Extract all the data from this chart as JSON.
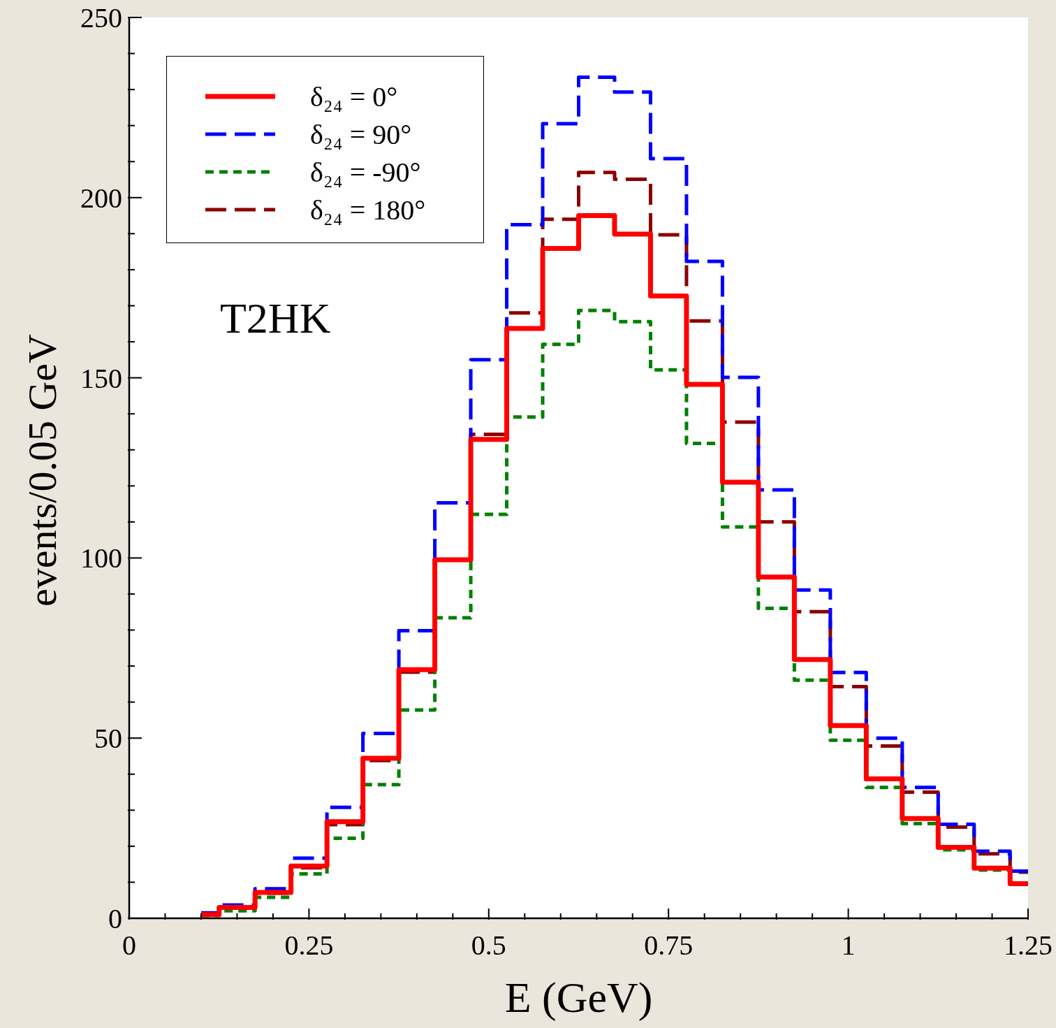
{
  "chart_data": {
    "type": "histogram",
    "xlabel": "E (GeV)",
    "ylabel": "events/0.05 GeV",
    "annotations": [
      "T2HK"
    ],
    "legend": "top left",
    "grid": false,
    "bins": [
      0.1,
      0.125,
      0.175,
      0.225,
      0.275,
      0.325,
      0.375,
      0.425,
      0.475,
      0.525,
      0.575,
      0.625,
      0.675,
      0.725,
      0.775,
      0.825,
      0.875,
      0.925,
      0.975,
      1.025,
      1.075,
      1.125,
      1.175,
      1.225,
      1.25
    ],
    "xlim": [
      0,
      1.25
    ],
    "ylim": [
      0,
      250
    ],
    "xticks": [
      0,
      {
        "value": 0.05,
        "label": null
      },
      {
        "value": 0.1,
        "label": null
      },
      {
        "value": 0.15,
        "label": null
      },
      {
        "value": 0.2,
        "label": null
      },
      0.25,
      {
        "value": 0.3,
        "label": null
      },
      {
        "value": 0.35,
        "label": null
      },
      {
        "value": 0.4,
        "label": null
      },
      {
        "value": 0.45,
        "label": null
      },
      0.5,
      {
        "value": 0.55,
        "label": null
      },
      {
        "value": 0.6,
        "label": null
      },
      {
        "value": 0.65,
        "label": null
      },
      {
        "value": 0.7,
        "label": null
      },
      0.75,
      {
        "value": 0.8,
        "label": null
      },
      {
        "value": 0.85,
        "label": null
      },
      {
        "value": 0.9,
        "label": null
      },
      {
        "value": 0.95,
        "label": null
      },
      1,
      {
        "value": 1.05,
        "label": null
      },
      {
        "value": 1.1,
        "label": null
      },
      {
        "value": 1.15,
        "label": null
      },
      {
        "value": 1.2,
        "label": null
      },
      1.25
    ],
    "yticks": [
      0,
      {
        "value": 10,
        "label": null
      },
      {
        "value": 20,
        "label": null
      },
      {
        "value": 30,
        "label": null
      },
      {
        "value": 40,
        "label": null
      },
      50,
      {
        "value": 60,
        "label": null
      },
      {
        "value": 70,
        "label": null
      },
      {
        "value": 80,
        "label": null
      },
      {
        "value": 90,
        "label": null
      },
      100,
      {
        "value": 110,
        "label": null
      },
      {
        "value": 120,
        "label": null
      },
      {
        "value": 130,
        "label": null
      },
      {
        "value": 140,
        "label": null
      },
      150,
      {
        "value": 160,
        "label": null
      },
      {
        "value": 170,
        "label": null
      },
      {
        "value": 180,
        "label": null
      },
      {
        "value": 190,
        "label": null
      },
      200,
      {
        "value": 210,
        "label": null
      },
      {
        "value": 220,
        "label": null
      },
      {
        "value": 230,
        "label": null
      },
      {
        "value": 240,
        "label": null
      },
      250
    ],
    "series": [
      {
        "name": "δ₂₄ = 0°",
        "color": "#ff0000",
        "line_style": "solid",
        "values": [
          1,
          3,
          7.2,
          14.5,
          26.8,
          44.4,
          69,
          99.5,
          132.9,
          163.7,
          185.9,
          195,
          189.9,
          172.7,
          148.2,
          121,
          94.7,
          71.8,
          53.5,
          38.7,
          27.7,
          19.7,
          13.9,
          9.6
        ]
      },
      {
        "name": "δ₂₄ = 90°",
        "color": "#0000ff",
        "line_style": "dashed",
        "values": [
          1.5,
          3.7,
          8.2,
          16.7,
          30.8,
          51.3,
          79.8,
          115.3,
          155,
          192.5,
          220.5,
          233.4,
          229.3,
          210.8,
          182.3,
          150.1,
          118.9,
          91.1,
          68.2,
          50,
          36.3,
          26.1,
          18.6,
          13.1
        ]
      },
      {
        "name": "δ₂₄ = -90°",
        "color": "#008000",
        "line_style": "dotted",
        "values": [
          0.8,
          2.1,
          5.8,
          12.3,
          22.2,
          37.1,
          57.8,
          83.4,
          112.1,
          139.1,
          159.3,
          168.7,
          165.6,
          152.2,
          131.8,
          108.6,
          86,
          66.1,
          49.4,
          36.3,
          26.3,
          19,
          13.4,
          9.5
        ]
      },
      {
        "name": "δ₂₄ = 180°",
        "color": "#8b0000",
        "line_style": "dashed",
        "values": [
          1,
          3,
          7,
          14,
          26,
          43.8,
          68.3,
          99.5,
          134.3,
          168,
          194,
          207,
          205.1,
          189.7,
          165.8,
          137.7,
          110,
          85.1,
          64.3,
          47.8,
          35,
          25.3,
          17.9,
          12.8
        ]
      }
    ]
  }
}
